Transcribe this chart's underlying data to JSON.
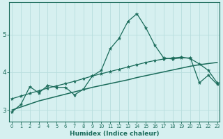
{
  "xlabel": "Humidex (Indice chaleur)",
  "ylabel": "",
  "bg_color": "#d6f0f0",
  "grid_color": "#b8dede",
  "line_color": "#1a6b5a",
  "x_ticks": [
    0,
    1,
    2,
    3,
    4,
    5,
    6,
    7,
    8,
    9,
    10,
    11,
    12,
    13,
    14,
    15,
    16,
    17,
    18,
    19,
    20,
    21,
    22,
    23
  ],
  "y_ticks": [
    3,
    4,
    5
  ],
  "ylim": [
    2.7,
    5.85
  ],
  "xlim": [
    -0.3,
    23.3
  ],
  "series1_x": [
    0,
    1,
    2,
    3,
    4,
    5,
    6,
    7,
    8,
    9,
    10,
    11,
    12,
    13,
    14,
    15,
    16,
    17,
    18,
    19,
    20,
    21,
    22,
    23
  ],
  "series1_y": [
    2.95,
    3.15,
    3.62,
    3.45,
    3.65,
    3.6,
    3.6,
    3.4,
    3.55,
    3.9,
    4.05,
    4.62,
    4.9,
    5.35,
    5.55,
    5.18,
    4.72,
    4.38,
    4.35,
    4.38,
    4.38,
    3.72,
    3.92,
    3.68
  ],
  "series2_x": [
    0,
    1,
    2,
    3,
    4,
    5,
    6,
    7,
    8,
    9,
    10,
    11,
    12,
    13,
    14,
    15,
    16,
    17,
    18,
    19,
    20,
    21,
    22,
    23
  ],
  "series2_y": [
    3.0,
    3.08,
    3.16,
    3.24,
    3.3,
    3.36,
    3.42,
    3.48,
    3.54,
    3.6,
    3.65,
    3.7,
    3.75,
    3.8,
    3.86,
    3.91,
    3.96,
    4.01,
    4.06,
    4.11,
    4.16,
    4.2,
    4.23,
    4.26
  ],
  "series3_x": [
    0,
    1,
    2,
    3,
    4,
    5,
    6,
    7,
    8,
    9,
    10,
    11,
    12,
    13,
    14,
    15,
    16,
    17,
    18,
    19,
    20,
    21,
    22,
    23
  ],
  "series3_y": [
    3.3,
    3.37,
    3.44,
    3.51,
    3.58,
    3.64,
    3.7,
    3.76,
    3.83,
    3.9,
    3.96,
    4.02,
    4.08,
    4.14,
    4.2,
    4.26,
    4.31,
    4.35,
    4.38,
    4.4,
    4.36,
    4.22,
    4.05,
    3.72
  ]
}
